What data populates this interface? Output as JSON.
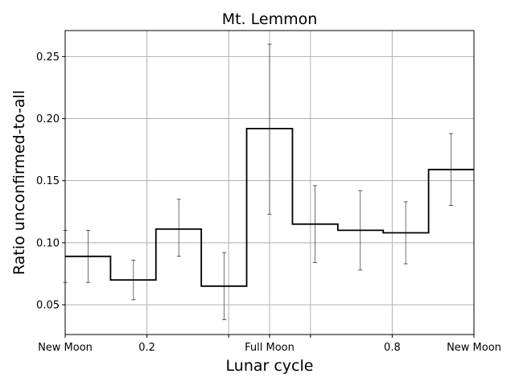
{
  "chart_data": {
    "type": "line",
    "step": "post",
    "title": "Mt. Lemmon",
    "xlabel": "Lunar cycle",
    "ylabel": "Ratio unconfirmed-to-all",
    "xlim": [
      0,
      1
    ],
    "ylim": [
      0.026,
      0.271
    ],
    "grid": true,
    "x_ticks": [
      0,
      0.2,
      0.4,
      0.5,
      0.6,
      0.8,
      1.0
    ],
    "x_tick_labels": [
      "New Moon",
      "0.2",
      "",
      "Full Moon",
      "",
      "0.8",
      "New Moon"
    ],
    "y_ticks": [
      0.05,
      0.1,
      0.15,
      0.2,
      0.25
    ],
    "y_tick_labels": [
      "0.05",
      "0.10",
      "0.15",
      "0.20",
      "0.25"
    ],
    "bin_edges": [
      0,
      0.111,
      0.222,
      0.333,
      0.444,
      0.556,
      0.667,
      0.778,
      0.889,
      1.0
    ],
    "series": [
      {
        "values": [
          0.089,
          0.07,
          0.111,
          0.065,
          0.192,
          0.115,
          0.11,
          0.108,
          0.159
        ],
        "error_bars": [
          {
            "x": 0.0,
            "low": 0.068,
            "high": 0.11
          },
          {
            "x": 0.056,
            "low": 0.068,
            "high": 0.11
          },
          {
            "x": 0.167,
            "low": 0.054,
            "high": 0.086
          },
          {
            "x": 0.278,
            "low": 0.089,
            "high": 0.135
          },
          {
            "x": 0.389,
            "low": 0.038,
            "high": 0.092
          },
          {
            "x": 0.5,
            "low": 0.123,
            "high": 0.26
          },
          {
            "x": 0.611,
            "low": 0.084,
            "high": 0.146
          },
          {
            "x": 0.722,
            "low": 0.078,
            "high": 0.142
          },
          {
            "x": 0.833,
            "low": 0.083,
            "high": 0.133
          },
          {
            "x": 0.944,
            "low": 0.13,
            "high": 0.188
          }
        ]
      }
    ]
  },
  "colors": {
    "line": "#000000",
    "grid": "#b0b0b0",
    "background": "#ffffff"
  }
}
